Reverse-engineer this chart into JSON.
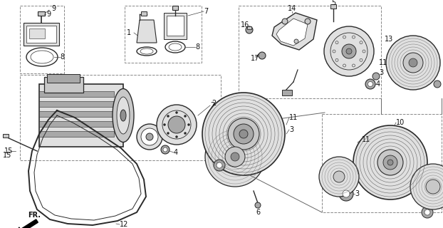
{
  "bg_color": "#ffffff",
  "lc": "#2a2a2a",
  "gray1": "#c8c8c8",
  "gray2": "#e0e0e0",
  "gray3": "#a8a8a8",
  "gray4": "#909090",
  "figsize": [
    6.22,
    3.2
  ],
  "dpi": 100,
  "xlim": [
    0,
    622
  ],
  "ylim": [
    0,
    320
  ]
}
